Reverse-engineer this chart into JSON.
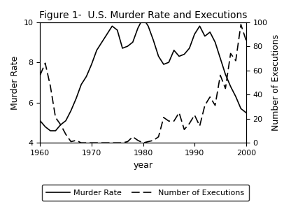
{
  "title": "Figure 1-  U.S. Murder Rate and Executions",
  "xlabel": "year",
  "ylabel_left": "Murder Rate",
  "ylabel_right": "Number of Executions",
  "years": [
    1960,
    1961,
    1962,
    1963,
    1964,
    1965,
    1966,
    1967,
    1968,
    1969,
    1970,
    1971,
    1972,
    1973,
    1974,
    1975,
    1976,
    1977,
    1978,
    1979,
    1980,
    1981,
    1982,
    1983,
    1984,
    1985,
    1986,
    1987,
    1988,
    1989,
    1990,
    1991,
    1992,
    1993,
    1994,
    1995,
    1996,
    1997,
    1998,
    1999,
    2000
  ],
  "murder_rate": [
    5.1,
    4.8,
    4.6,
    4.6,
    4.9,
    5.1,
    5.6,
    6.2,
    6.9,
    7.3,
    7.9,
    8.6,
    9.0,
    9.4,
    9.8,
    9.6,
    8.7,
    8.8,
    9.0,
    9.7,
    10.2,
    9.8,
    9.1,
    8.3,
    7.9,
    8.0,
    8.6,
    8.3,
    8.4,
    8.7,
    9.4,
    9.8,
    9.3,
    9.5,
    9.0,
    8.2,
    7.4,
    6.8,
    6.3,
    5.7,
    5.5
  ],
  "executions": [
    56,
    66,
    47,
    21,
    15,
    7,
    1,
    2,
    0,
    0,
    0,
    0,
    0,
    0,
    0,
    0,
    0,
    1,
    5,
    2,
    0,
    1,
    2,
    5,
    21,
    18,
    18,
    25,
    11,
    16,
    23,
    14,
    31,
    38,
    31,
    56,
    45,
    74,
    68,
    98,
    85
  ],
  "murder_ylim": [
    4,
    10
  ],
  "murder_yticks": [
    4,
    6,
    8,
    10
  ],
  "exec_ylim": [
    0,
    100
  ],
  "exec_yticks": [
    0,
    20,
    40,
    60,
    80,
    100
  ],
  "xlim": [
    1960,
    2000
  ],
  "xticks": [
    1960,
    1970,
    1980,
    1990,
    2000
  ],
  "murder_color": "#000000",
  "exec_color": "#000000",
  "bg_color": "#ffffff",
  "plot_bg_color": "#ffffff",
  "legend_murder": "Murder Rate",
  "legend_exec": "Number of Executions",
  "title_fontsize": 10,
  "label_fontsize": 9,
  "tick_fontsize": 8,
  "legend_fontsize": 8,
  "linewidth": 1.2
}
